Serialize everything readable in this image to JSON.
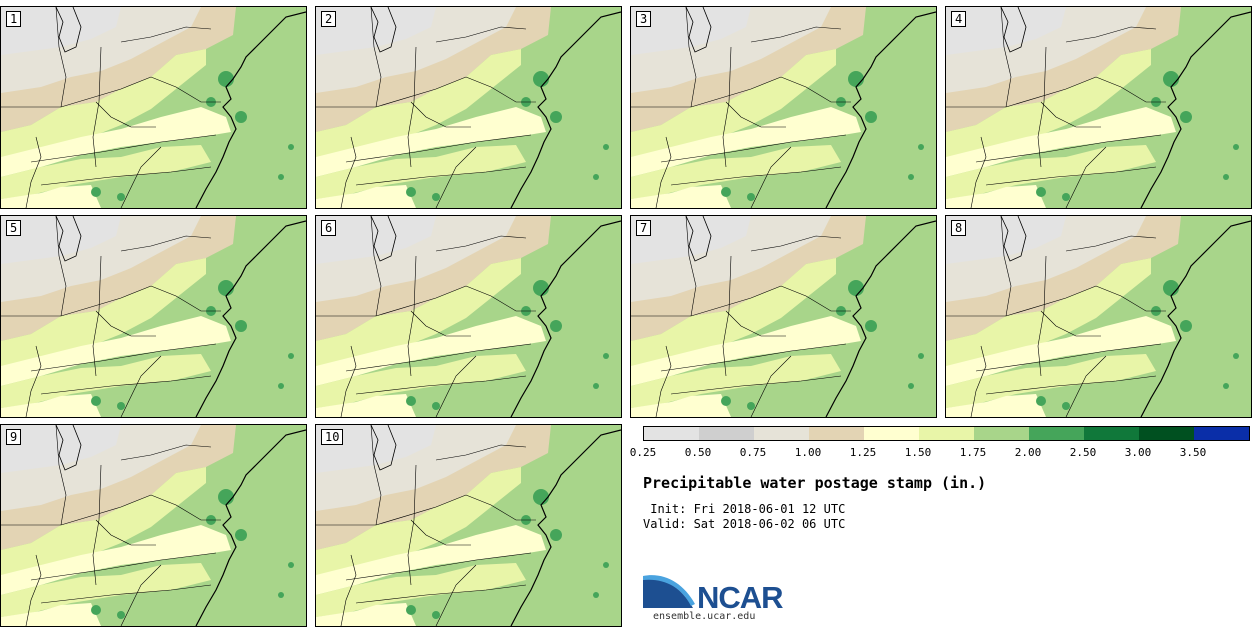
{
  "figure": {
    "title": "Precipitable water postage stamp (in.)",
    "init": " Init: Fri 2018-06-01 12 UTC",
    "valid": "Valid: Sat 2018-06-02 06 UTC"
  },
  "members": [
    "1",
    "2",
    "3",
    "4",
    "5",
    "6",
    "7",
    "8",
    "9",
    "10"
  ],
  "colorbar": {
    "colors": [
      "#e3e3e3",
      "#cfcfcf",
      "#e6e3d8",
      "#e3d4b4",
      "#ffffd0",
      "#e8f5a8",
      "#a8d58a",
      "#45a55a",
      "#10783a",
      "#005020",
      "#0a2ea8"
    ],
    "ticks": [
      "0.25",
      "0.50",
      "0.75",
      "1.00",
      "1.25",
      "1.50",
      "1.75",
      "2.00",
      "2.50",
      "3.00",
      "3.50"
    ]
  },
  "logo": {
    "text": "NCAR",
    "url": "ensemble.ucar.edu",
    "colors": {
      "blue": "#1d4f91",
      "light": "#4aa3df"
    }
  }
}
